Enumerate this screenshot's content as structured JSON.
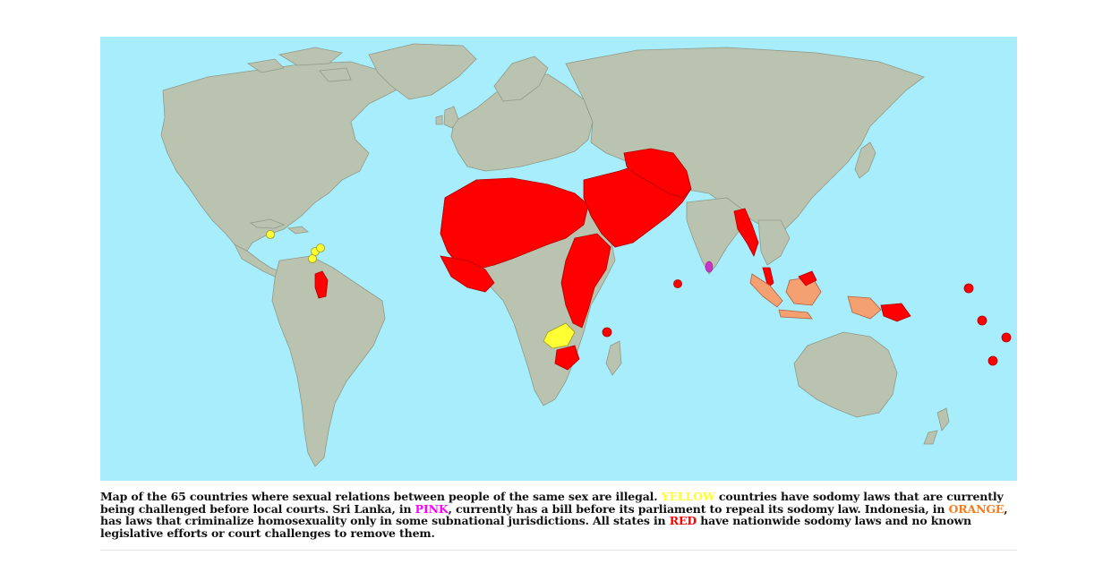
{
  "map": {
    "legend_colors": {
      "ocean": "#a8edfc",
      "land": "#b9c3b0",
      "yellow": "#ffff33",
      "pink": "#cc33cc",
      "orange": "#f4a070",
      "red": "#ff0000"
    }
  },
  "caption": {
    "part1": "Map of the 65 countries where sexual relations between people of the same sex are illegal. ",
    "yellow_word": "YELLOW",
    "part2": " countries have sodomy laws that are currently being challenged before local courts. Sri Lanka, in ",
    "pink_word": "PINK",
    "part3": ", currently has a bill before its parliament to repeal its sodomy law. Indonesia, in ",
    "orange_word": "ORANGE",
    "part4": ", has laws that criminalize homosexuality only in some subnational jurisdictions. All states in ",
    "red_word": "RED",
    "part5": " have nationwide sodomy laws and no known legislative efforts or court challenges to remove them."
  }
}
